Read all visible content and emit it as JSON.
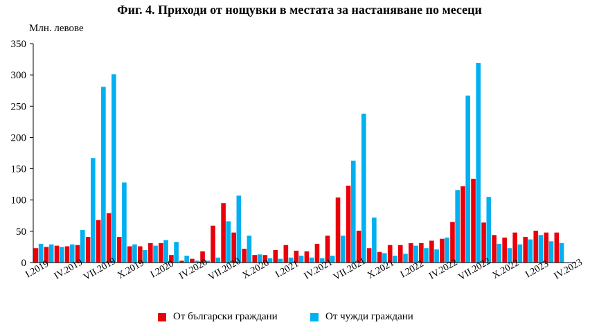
{
  "chart_data": {
    "type": "bar",
    "title": "Фиг. 4. Приходи от нощувки в местата за настаняване по месеци",
    "ylabel": "Млн. левове",
    "xlabel": "",
    "ylim": [
      0,
      350
    ],
    "yticks": [
      0,
      50,
      100,
      150,
      200,
      250,
      300,
      350
    ],
    "grid": false,
    "legend_position": "bottom",
    "x_tick_labels": [
      "I.2019",
      "IV.2019",
      "VII.2019",
      "X.2019",
      "I.2020",
      "IV.2020",
      "VII.2020",
      "X.2020",
      "I.2021",
      "IV.2021",
      "VII.2021",
      "X.2021",
      "I.2022",
      "IV.2022",
      "VII.2022",
      "X.2022",
      "I.2023",
      "IV.2023"
    ],
    "x_tick_indices": [
      0,
      3,
      6,
      9,
      12,
      15,
      18,
      21,
      24,
      27,
      30,
      33,
      36,
      39,
      42,
      45,
      48,
      51
    ],
    "categories": [
      "I.2019",
      "II.2019",
      "III.2019",
      "IV.2019",
      "V.2019",
      "VI.2019",
      "VII.2019",
      "VIII.2019",
      "IX.2019",
      "X.2019",
      "XI.2019",
      "XII.2019",
      "I.2020",
      "II.2020",
      "III.2020",
      "IV.2020",
      "V.2020",
      "VI.2020",
      "VII.2020",
      "VIII.2020",
      "IX.2020",
      "X.2020",
      "XI.2020",
      "XII.2020",
      "I.2021",
      "II.2021",
      "III.2021",
      "IV.2021",
      "V.2021",
      "VI.2021",
      "VII.2021",
      "VIII.2021",
      "IX.2021",
      "X.2021",
      "XI.2021",
      "XII.2021",
      "I.2022",
      "II.2022",
      "III.2022",
      "IV.2022",
      "V.2022",
      "VI.2022",
      "VII.2022",
      "VIII.2022",
      "IX.2022",
      "X.2022",
      "XI.2022",
      "XII.2022",
      "I.2023",
      "II.2023",
      "III.2023",
      "IV.2023"
    ],
    "series": [
      {
        "name": "От български граждани",
        "color": "#e8000b",
        "values": [
          23,
          25,
          27,
          26,
          28,
          41,
          68,
          79,
          41,
          26,
          26,
          31,
          31,
          12,
          3,
          6,
          18,
          59,
          95,
          48,
          22,
          12,
          12,
          20,
          28,
          19,
          18,
          30,
          43,
          104,
          123,
          51,
          23,
          17,
          28,
          28,
          31,
          31,
          35,
          38,
          65,
          122,
          134,
          64,
          44,
          40,
          48,
          41,
          51,
          48,
          48,
          null
        ]
      },
      {
        "name": "От чужди граждани",
        "color": "#00b0f0",
        "values": [
          30,
          29,
          25,
          29,
          52,
          167,
          281,
          301,
          128,
          29,
          20,
          27,
          36,
          33,
          11,
          3,
          3,
          8,
          66,
          107,
          43,
          13,
          7,
          6,
          8,
          11,
          8,
          7,
          11,
          43,
          163,
          238,
          72,
          15,
          11,
          14,
          27,
          23,
          21,
          40,
          116,
          267,
          319,
          105,
          30,
          23,
          29,
          37,
          44,
          34,
          31,
          null
        ]
      }
    ]
  }
}
